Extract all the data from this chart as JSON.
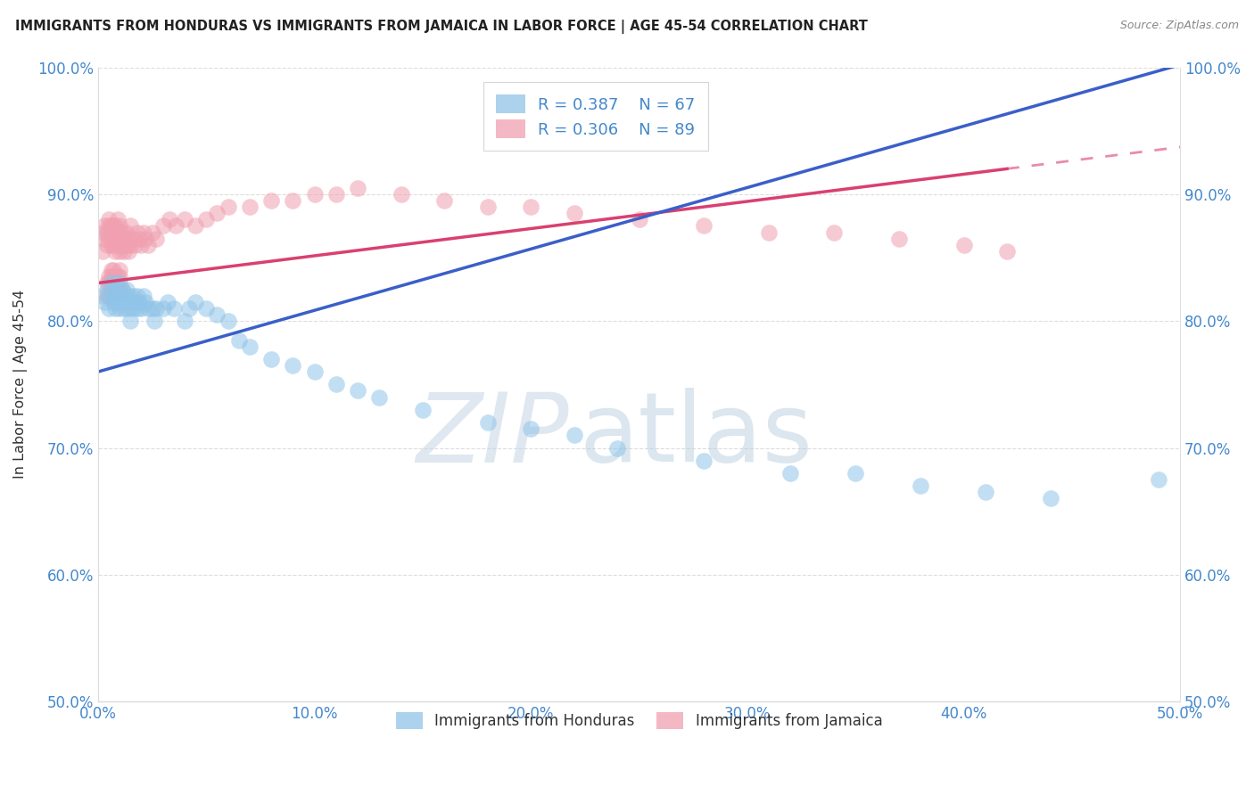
{
  "title": "IMMIGRANTS FROM HONDURAS VS IMMIGRANTS FROM JAMAICA IN LABOR FORCE | AGE 45-54 CORRELATION CHART",
  "source": "Source: ZipAtlas.com",
  "ylabel": "In Labor Force | Age 45-54",
  "xlim": [
    0.0,
    0.5
  ],
  "ylim": [
    0.5,
    1.0
  ],
  "xticks": [
    0.0,
    0.1,
    0.2,
    0.3,
    0.4,
    0.5
  ],
  "yticks": [
    0.5,
    0.6,
    0.7,
    0.8,
    0.9,
    1.0
  ],
  "honduras_color": "#90c4e8",
  "jamaica_color": "#f0a0b0",
  "honduras_R": 0.387,
  "honduras_N": 67,
  "jamaica_R": 0.306,
  "jamaica_N": 89,
  "trend_blue_color": "#3a5fc8",
  "trend_pink_color": "#d94070",
  "axis_label_color": "#4488cc",
  "grid_color": "#dddddd",
  "honduras_x": [
    0.002,
    0.003,
    0.004,
    0.005,
    0.006,
    0.006,
    0.007,
    0.007,
    0.008,
    0.008,
    0.009,
    0.009,
    0.01,
    0.01,
    0.01,
    0.011,
    0.011,
    0.012,
    0.012,
    0.013,
    0.013,
    0.014,
    0.014,
    0.015,
    0.015,
    0.016,
    0.016,
    0.017,
    0.018,
    0.018,
    0.019,
    0.02,
    0.021,
    0.022,
    0.023,
    0.025,
    0.026,
    0.027,
    0.03,
    0.032,
    0.035,
    0.04,
    0.042,
    0.045,
    0.05,
    0.055,
    0.06,
    0.065,
    0.07,
    0.08,
    0.09,
    0.1,
    0.11,
    0.12,
    0.13,
    0.15,
    0.18,
    0.2,
    0.22,
    0.24,
    0.28,
    0.32,
    0.35,
    0.38,
    0.41,
    0.44,
    0.49
  ],
  "honduras_y": [
    0.82,
    0.815,
    0.825,
    0.81,
    0.82,
    0.83,
    0.815,
    0.825,
    0.81,
    0.82,
    0.815,
    0.825,
    0.81,
    0.82,
    0.83,
    0.815,
    0.825,
    0.81,
    0.82,
    0.815,
    0.825,
    0.81,
    0.82,
    0.815,
    0.8,
    0.81,
    0.82,
    0.815,
    0.81,
    0.82,
    0.815,
    0.81,
    0.82,
    0.815,
    0.81,
    0.81,
    0.8,
    0.81,
    0.81,
    0.815,
    0.81,
    0.8,
    0.81,
    0.815,
    0.81,
    0.805,
    0.8,
    0.785,
    0.78,
    0.77,
    0.765,
    0.76,
    0.75,
    0.745,
    0.74,
    0.73,
    0.72,
    0.715,
    0.71,
    0.7,
    0.69,
    0.68,
    0.68,
    0.67,
    0.665,
    0.66,
    0.675
  ],
  "jamaica_x": [
    0.002,
    0.002,
    0.003,
    0.003,
    0.004,
    0.004,
    0.005,
    0.005,
    0.005,
    0.006,
    0.006,
    0.006,
    0.007,
    0.007,
    0.007,
    0.008,
    0.008,
    0.008,
    0.009,
    0.009,
    0.009,
    0.01,
    0.01,
    0.01,
    0.011,
    0.011,
    0.012,
    0.012,
    0.013,
    0.013,
    0.014,
    0.014,
    0.015,
    0.015,
    0.016,
    0.017,
    0.018,
    0.019,
    0.02,
    0.021,
    0.022,
    0.023,
    0.025,
    0.027,
    0.03,
    0.033,
    0.036,
    0.04,
    0.045,
    0.05,
    0.055,
    0.06,
    0.07,
    0.08,
    0.09,
    0.1,
    0.11,
    0.12,
    0.14,
    0.16,
    0.18,
    0.2,
    0.22,
    0.25,
    0.28,
    0.31,
    0.34,
    0.37,
    0.4,
    0.42,
    0.004,
    0.004,
    0.005,
    0.005,
    0.005,
    0.006,
    0.006,
    0.006,
    0.007,
    0.007,
    0.007,
    0.008,
    0.008,
    0.009,
    0.009,
    0.01,
    0.01,
    0.01,
    0.011
  ],
  "jamaica_y": [
    0.855,
    0.87,
    0.865,
    0.875,
    0.86,
    0.87,
    0.865,
    0.875,
    0.88,
    0.86,
    0.87,
    0.875,
    0.86,
    0.87,
    0.875,
    0.855,
    0.865,
    0.875,
    0.86,
    0.87,
    0.88,
    0.855,
    0.865,
    0.875,
    0.86,
    0.87,
    0.855,
    0.865,
    0.86,
    0.87,
    0.855,
    0.865,
    0.86,
    0.875,
    0.865,
    0.86,
    0.87,
    0.865,
    0.86,
    0.87,
    0.865,
    0.86,
    0.87,
    0.865,
    0.875,
    0.88,
    0.875,
    0.88,
    0.875,
    0.88,
    0.885,
    0.89,
    0.89,
    0.895,
    0.895,
    0.9,
    0.9,
    0.905,
    0.9,
    0.895,
    0.89,
    0.89,
    0.885,
    0.88,
    0.875,
    0.87,
    0.87,
    0.865,
    0.86,
    0.855,
    0.82,
    0.83,
    0.82,
    0.83,
    0.835,
    0.825,
    0.835,
    0.84,
    0.825,
    0.835,
    0.84,
    0.825,
    0.835,
    0.825,
    0.835,
    0.825,
    0.835,
    0.84,
    0.825
  ]
}
